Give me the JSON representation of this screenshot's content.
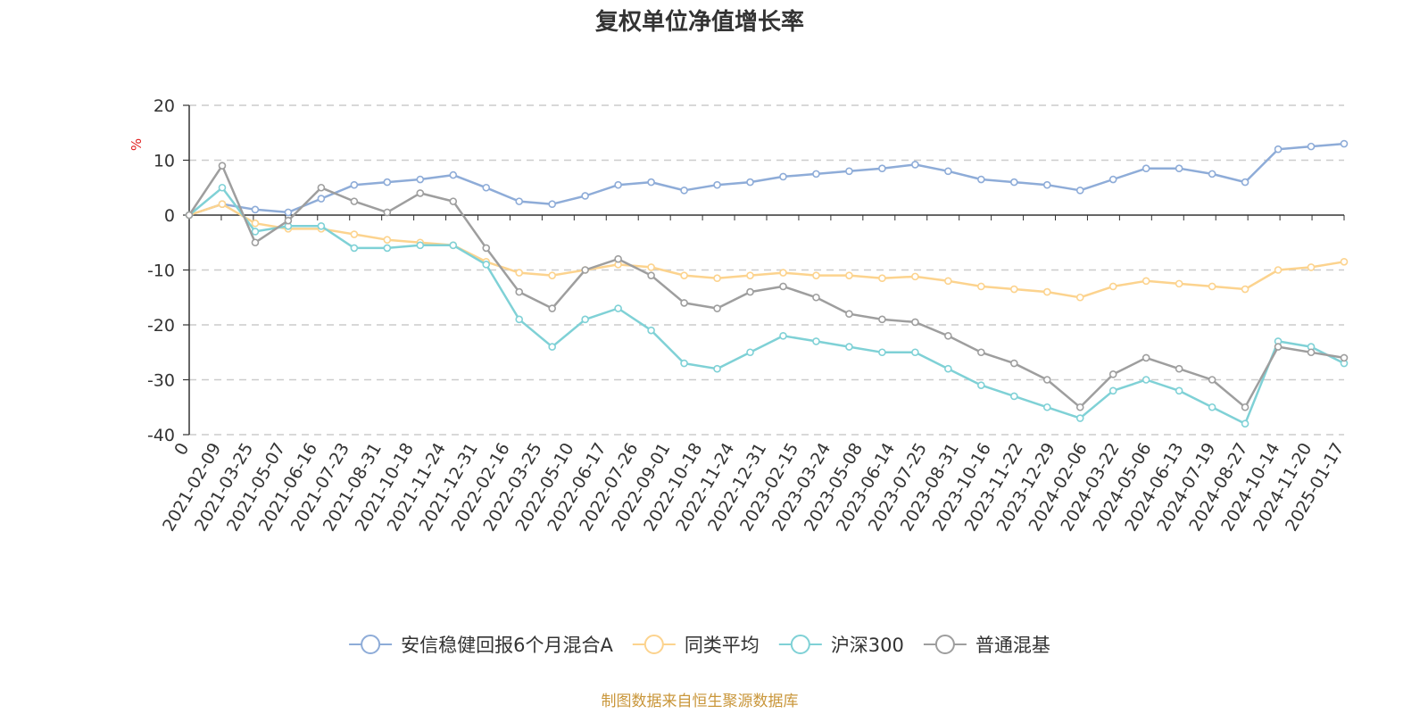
{
  "chart_data": {
    "type": "line",
    "title": "复权单位净值增长率",
    "ylabel": "%",
    "ylim": [
      -40,
      20
    ],
    "yticks": [
      "20",
      "10",
      "0",
      "-10",
      "-20",
      "-30",
      "-40"
    ],
    "grid": "horizontal-dashed",
    "x_origin_label": "0",
    "categories": [
      "2021-02-09",
      "2021-03-25",
      "2021-05-07",
      "2021-06-16",
      "2021-07-23",
      "2021-08-31",
      "2021-10-18",
      "2021-11-24",
      "2021-12-31",
      "2022-02-16",
      "2022-03-25",
      "2022-05-10",
      "2022-06-17",
      "2022-07-26",
      "2022-09-01",
      "2022-10-18",
      "2022-11-24",
      "2022-12-31",
      "2023-02-15",
      "2023-03-24",
      "2023-05-08",
      "2023-06-14",
      "2023-07-25",
      "2023-08-31",
      "2023-10-16",
      "2023-11-22",
      "2023-12-29",
      "2024-02-06",
      "2024-03-22",
      "2024-05-06",
      "2024-06-13",
      "2024-07-19",
      "2024-08-27",
      "2024-10-14",
      "2024-11-20",
      "2025-01-17"
    ],
    "legend_position": "bottom",
    "series": [
      {
        "name": "安信稳健回报6个月混合A",
        "color": "#8eacd8",
        "values": [
          0,
          2,
          1,
          0.5,
          3,
          5.5,
          6,
          6.5,
          7.3,
          5,
          2.5,
          2,
          3.5,
          5.5,
          6,
          4.5,
          5.5,
          6,
          7,
          7.5,
          8,
          8.5,
          9.2,
          8,
          6.5,
          6,
          5.5,
          4.5,
          6.5,
          8.5,
          8.5,
          7.5,
          6,
          12,
          12.5,
          13
        ]
      },
      {
        "name": "同类平均",
        "color": "#fcd38e",
        "values": [
          0,
          2,
          -1.5,
          -2.5,
          -2.5,
          -3.5,
          -4.5,
          -5,
          -5.5,
          -8.5,
          -10.5,
          -11,
          -10,
          -9,
          -9.5,
          -11,
          -11.5,
          -11,
          -10.5,
          -11,
          -11,
          -11.5,
          -11.2,
          -12,
          -13,
          -13.5,
          -14,
          -15,
          -13,
          -12,
          -12.5,
          -13,
          -13.5,
          -10,
          -9.5,
          -8.5
        ]
      },
      {
        "name": "沪深300",
        "color": "#7fd1d6",
        "values": [
          0,
          5,
          -3,
          -2,
          -2,
          -6,
          -6,
          -5.5,
          -5.5,
          -9,
          -19,
          -24,
          -19,
          -17,
          -21,
          -27,
          -28,
          -25,
          -22,
          -23,
          -24,
          -25,
          -25,
          -28,
          -31,
          -33,
          -35,
          -37,
          -32,
          -30,
          -32,
          -35,
          -38,
          -23,
          -24,
          -27
        ]
      },
      {
        "name": "普通混基",
        "color": "#9e9e9e",
        "values": [
          0,
          9,
          -5,
          -1,
          5,
          2.5,
          0.5,
          4,
          2.5,
          -6,
          -14,
          -17,
          -10,
          -8,
          -11,
          -16,
          -17,
          -14,
          -13,
          -15,
          -18,
          -19,
          -19.5,
          -22,
          -25,
          -27,
          -30,
          -35,
          -29,
          -26,
          -28,
          -30,
          -35,
          -24,
          -25,
          -26
        ]
      }
    ]
  },
  "source_text": "制图数据来自恒生聚源数据库"
}
